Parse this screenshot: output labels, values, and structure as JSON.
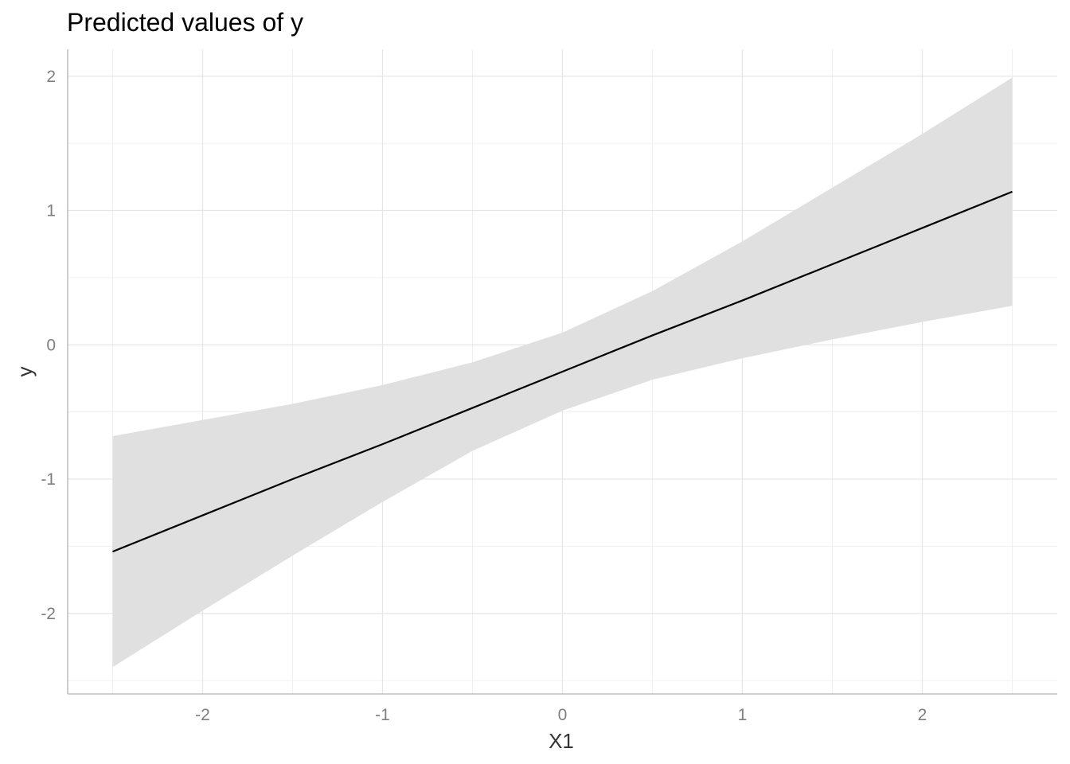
{
  "chart_data": {
    "type": "line",
    "title": "Predicted values of y",
    "xlabel": "X1",
    "ylabel": "y",
    "xlim": [
      -2.75,
      2.75
    ],
    "ylim": [
      -2.6,
      2.2
    ],
    "x_ticks": [
      -2,
      -1,
      0,
      1,
      2
    ],
    "x_tick_labels": [
      "-2",
      "-1",
      "0",
      "1",
      "2"
    ],
    "y_ticks": [
      -2,
      -1,
      0,
      1,
      2
    ],
    "y_tick_labels": [
      "-2",
      "-1",
      "0",
      "1",
      "2"
    ],
    "grid": true,
    "colors": {
      "line": "#000000",
      "ribbon": "#e0e0e0",
      "grid_major": "#e6e6e6",
      "grid_minor": "#f0f0f0",
      "axis": "#b3b3b3"
    },
    "series": [
      {
        "x": [
          -2.5,
          -2.0,
          -1.5,
          -1.0,
          -0.5,
          0.0,
          0.5,
          1.0,
          1.5,
          2.0,
          2.5
        ],
        "y": [
          -1.54,
          -1.27,
          -1.0,
          -0.74,
          -0.47,
          -0.2,
          0.07,
          0.33,
          0.6,
          0.87,
          1.14
        ],
        "lower": [
          -2.4,
          -1.98,
          -1.57,
          -1.17,
          -0.79,
          -0.49,
          -0.26,
          -0.1,
          0.04,
          0.17,
          0.29
        ],
        "upper": [
          -0.68,
          -0.56,
          -0.44,
          -0.3,
          -0.13,
          0.09,
          0.4,
          0.77,
          1.17,
          1.57,
          1.99
        ]
      }
    ]
  }
}
